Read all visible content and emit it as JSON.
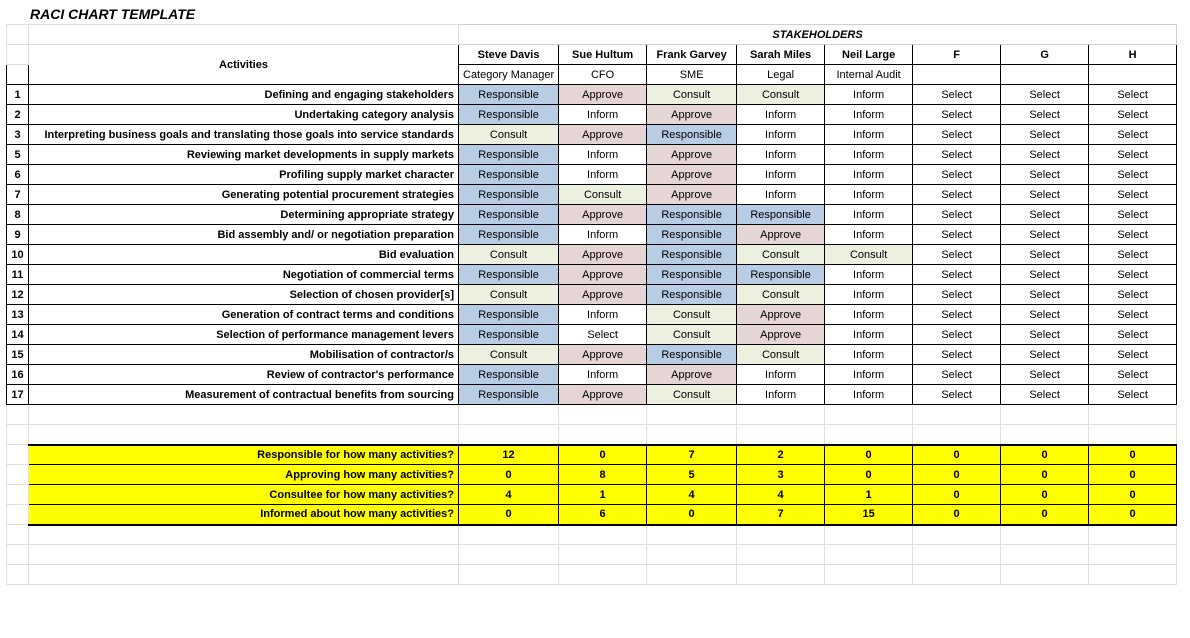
{
  "title": "RACI CHART TEMPLATE",
  "labels": {
    "activities": "Activities",
    "stakeholders": "STAKEHOLDERS"
  },
  "colors": {
    "Responsible": "#b8cce4",
    "Approve": "#e6d5d5",
    "Consult": "#ebf1de",
    "Inform": "#ffffff",
    "Select": "#ffffff"
  },
  "stakeholders": [
    {
      "name": "Steve Davis",
      "role": "Category Manager"
    },
    {
      "name": "Sue Hultum",
      "role": "CFO"
    },
    {
      "name": "Frank Garvey",
      "role": "SME"
    },
    {
      "name": "Sarah Miles",
      "role": "Legal"
    },
    {
      "name": "Neil Large",
      "role": "Internal Audit"
    },
    {
      "name": "F",
      "role": ""
    },
    {
      "name": "G",
      "role": ""
    },
    {
      "name": "H",
      "role": ""
    }
  ],
  "rows": [
    {
      "n": "1",
      "activity": "Defining and engaging stakeholders",
      "vals": [
        "Responsible",
        "Approve",
        "Consult",
        "Consult",
        "Inform",
        "Select",
        "Select",
        "Select"
      ]
    },
    {
      "n": "2",
      "activity": "Undertaking category analysis",
      "vals": [
        "Responsible",
        "Inform",
        "Approve",
        "Inform",
        "Inform",
        "Select",
        "Select",
        "Select"
      ]
    },
    {
      "n": "3",
      "activity": "Interpreting business goals and translating those goals into service standards",
      "vals": [
        "Consult",
        "Approve",
        "Responsible",
        "Inform",
        "Inform",
        "Select",
        "Select",
        "Select"
      ]
    },
    {
      "n": "5",
      "activity": "Reviewing market developments in supply markets",
      "vals": [
        "Responsible",
        "Inform",
        "Approve",
        "Inform",
        "Inform",
        "Select",
        "Select",
        "Select"
      ]
    },
    {
      "n": "6",
      "activity": "Profiling supply market character",
      "vals": [
        "Responsible",
        "Inform",
        "Approve",
        "Inform",
        "Inform",
        "Select",
        "Select",
        "Select"
      ]
    },
    {
      "n": "7",
      "activity": "Generating potential procurement strategies",
      "vals": [
        "Responsible",
        "Consult",
        "Approve",
        "Inform",
        "Inform",
        "Select",
        "Select",
        "Select"
      ]
    },
    {
      "n": "8",
      "activity": "Determining appropriate strategy",
      "vals": [
        "Responsible",
        "Approve",
        "Responsible",
        "Responsible",
        "Inform",
        "Select",
        "Select",
        "Select"
      ]
    },
    {
      "n": "9",
      "activity": "Bid assembly and/ or negotiation preparation",
      "vals": [
        "Responsible",
        "Inform",
        "Responsible",
        "Approve",
        "Inform",
        "Select",
        "Select",
        "Select"
      ]
    },
    {
      "n": "10",
      "activity": "Bid evaluation",
      "vals": [
        "Consult",
        "Approve",
        "Responsible",
        "Consult",
        "Consult",
        "Select",
        "Select",
        "Select"
      ]
    },
    {
      "n": "11",
      "activity": "Negotiation of commercial terms",
      "vals": [
        "Responsible",
        "Approve",
        "Responsible",
        "Responsible",
        "Inform",
        "Select",
        "Select",
        "Select"
      ]
    },
    {
      "n": "12",
      "activity": "Selection of chosen provider[s]",
      "vals": [
        "Consult",
        "Approve",
        "Responsible",
        "Consult",
        "Inform",
        "Select",
        "Select",
        "Select"
      ]
    },
    {
      "n": "13",
      "activity": "Generation of contract terms and conditions",
      "vals": [
        "Responsible",
        "Inform",
        "Consult",
        "Approve",
        "Inform",
        "Select",
        "Select",
        "Select"
      ]
    },
    {
      "n": "14",
      "activity": "Selection of performance management levers",
      "vals": [
        "Responsible",
        "Select",
        "Consult",
        "Approve",
        "Inform",
        "Select",
        "Select",
        "Select"
      ]
    },
    {
      "n": "15",
      "activity": "Mobilisation of contractor/s",
      "vals": [
        "Consult",
        "Approve",
        "Responsible",
        "Consult",
        "Inform",
        "Select",
        "Select",
        "Select"
      ]
    },
    {
      "n": "16",
      "activity": "Review of contractor's performance",
      "vals": [
        "Responsible",
        "Inform",
        "Approve",
        "Inform",
        "Inform",
        "Select",
        "Select",
        "Select"
      ]
    },
    {
      "n": "17",
      "activity": "Measurement of contractual benefits from sourcing",
      "vals": [
        "Responsible",
        "Approve",
        "Consult",
        "Inform",
        "Inform",
        "Select",
        "Select",
        "Select"
      ]
    }
  ],
  "summary": [
    {
      "label": "Responsible for how many activities?",
      "vals": [
        "12",
        "0",
        "7",
        "2",
        "0",
        "0",
        "0",
        "0"
      ]
    },
    {
      "label": "Approving how many activities?",
      "vals": [
        "0",
        "8",
        "5",
        "3",
        "0",
        "0",
        "0",
        "0"
      ]
    },
    {
      "label": "Consultee for how many activities?",
      "vals": [
        "4",
        "1",
        "4",
        "4",
        "1",
        "0",
        "0",
        "0"
      ]
    },
    {
      "label": "Informed about how many activities?",
      "vals": [
        "0",
        "6",
        "0",
        "7",
        "15",
        "0",
        "0",
        "0"
      ]
    }
  ]
}
